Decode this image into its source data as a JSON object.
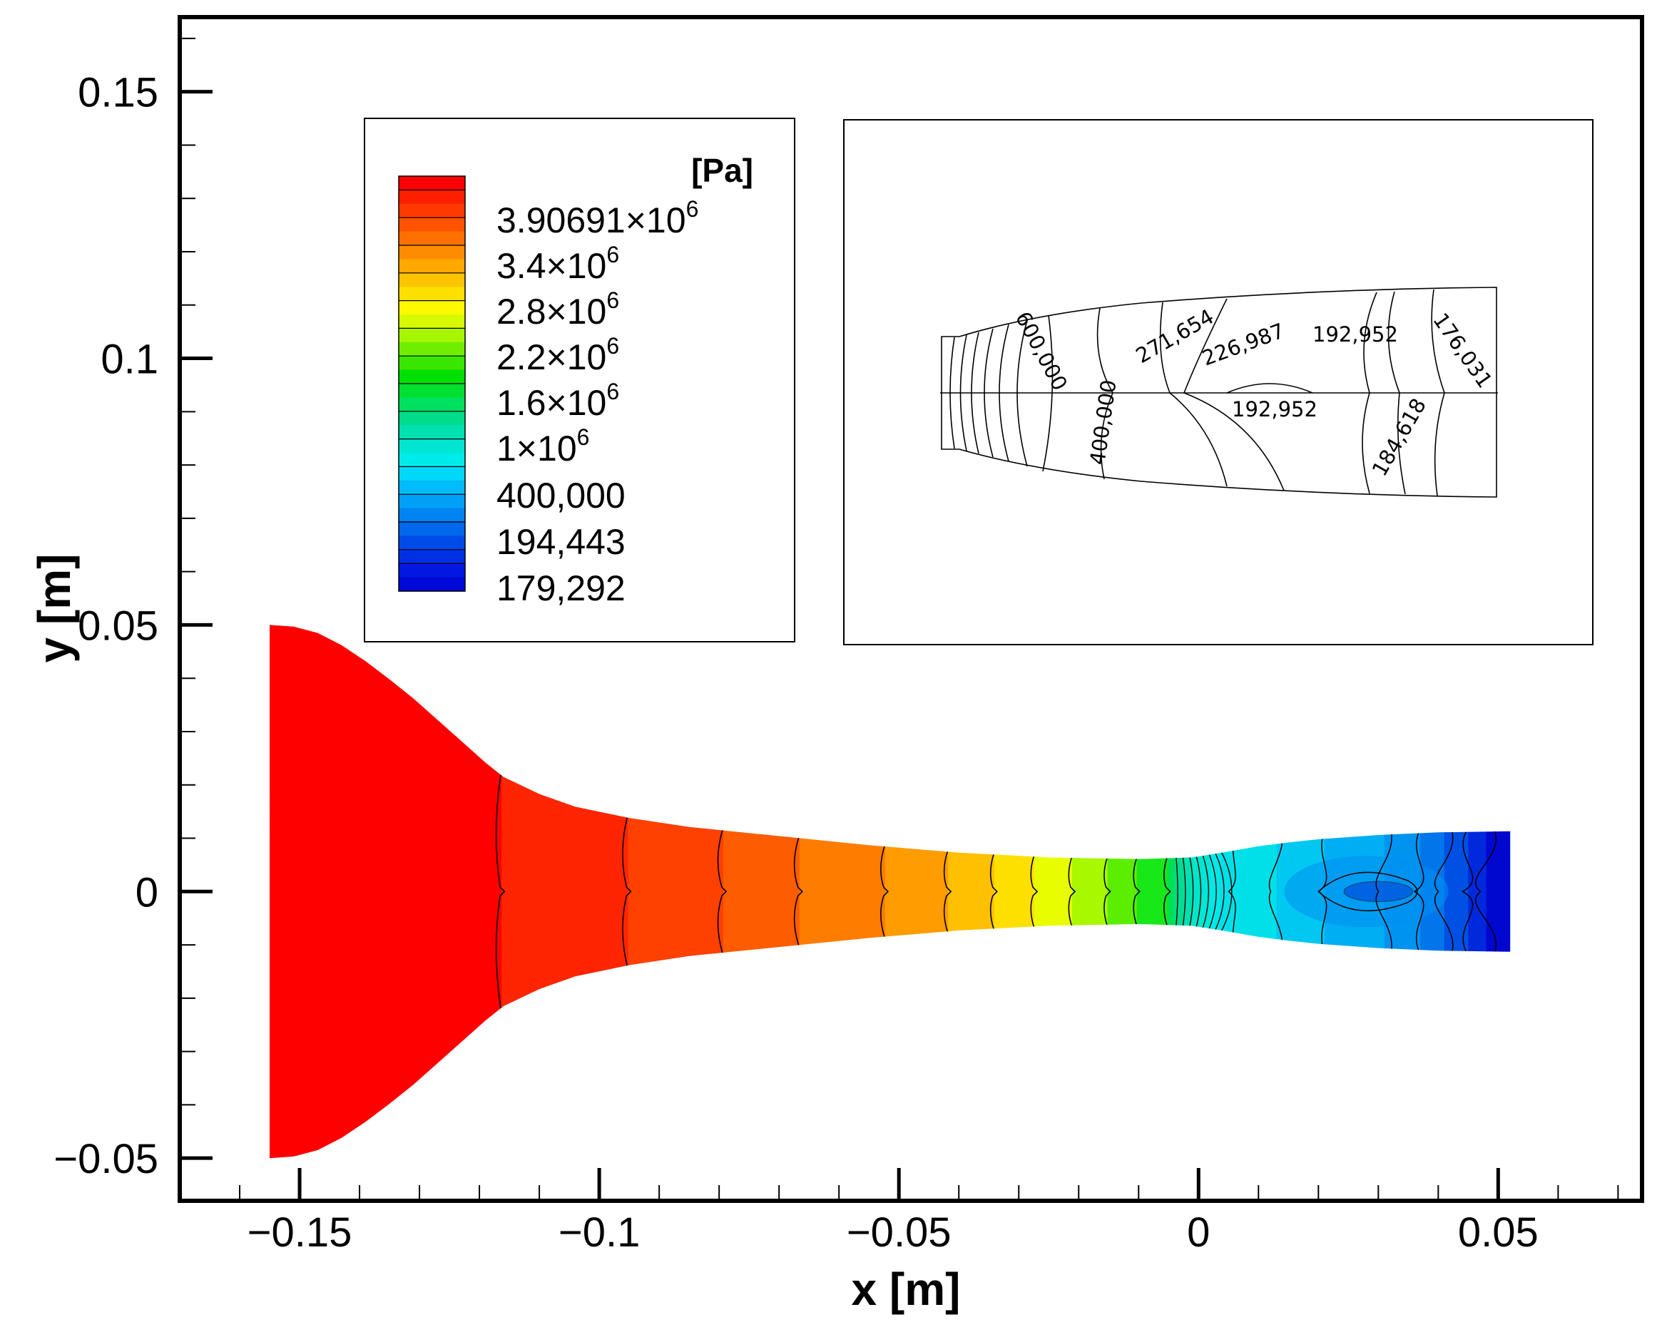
{
  "chart_data": {
    "type": "contour",
    "title": "",
    "xlabel": "x [m]",
    "ylabel": "y [m]",
    "xlim": [
      -0.17,
      0.074
    ],
    "ylim": [
      -0.058,
      0.164
    ],
    "x_ticks": [
      {
        "value": -0.15,
        "label": "−0.15"
      },
      {
        "value": -0.1,
        "label": "−0.1"
      },
      {
        "value": -0.05,
        "label": "−0.05"
      },
      {
        "value": 0,
        "label": "0"
      },
      {
        "value": 0.05,
        "label": "0.05"
      }
    ],
    "y_ticks": [
      {
        "value": -0.05,
        "label": "−0.05"
      },
      {
        "value": 0,
        "label": "0"
      },
      {
        "value": 0.05,
        "label": "0.05"
      },
      {
        "value": 0.1,
        "label": "0.1"
      },
      {
        "value": 0.15,
        "label": "0.15"
      }
    ],
    "nozzle_wall_upper": [
      [
        -0.155,
        0.05
      ],
      [
        -0.151,
        0.0497
      ],
      [
        -0.147,
        0.0485
      ],
      [
        -0.143,
        0.0462
      ],
      [
        -0.139,
        0.0432
      ],
      [
        -0.135,
        0.0398
      ],
      [
        -0.131,
        0.0362
      ],
      [
        -0.127,
        0.0322
      ],
      [
        -0.123,
        0.0282
      ],
      [
        -0.119,
        0.0242
      ],
      [
        -0.116,
        0.0215
      ],
      [
        -0.11,
        0.0183
      ],
      [
        -0.104,
        0.0159
      ],
      [
        -0.095,
        0.0138
      ],
      [
        -0.085,
        0.0121
      ],
      [
        -0.07,
        0.0104
      ],
      [
        -0.055,
        0.0087
      ],
      [
        -0.04,
        0.0073
      ],
      [
        -0.025,
        0.0064
      ],
      [
        -0.01,
        0.0061
      ],
      [
        -0.001,
        0.0064
      ],
      [
        0.005,
        0.0075
      ],
      [
        0.01,
        0.0085
      ],
      [
        0.015,
        0.0092
      ],
      [
        0.02,
        0.0098
      ],
      [
        0.03,
        0.0106
      ],
      [
        0.04,
        0.0111
      ],
      [
        0.052,
        0.0113
      ]
    ],
    "contour_levels_x": [
      -0.1163,
      -0.0952,
      -0.0793,
      -0.0666,
      -0.0523,
      -0.0418,
      -0.0341,
      -0.0274,
      -0.0211,
      -0.0152,
      -0.0103,
      -0.0052
    ],
    "band_colors": [
      "#fe0000",
      "#fe2500",
      "#fe4000",
      "#fe5c00",
      "#fe7c00",
      "#fe9c00",
      "#fec000",
      "#fee000",
      "#e8fe00",
      "#a8f800",
      "#5cee00",
      "#18e818",
      "#00e050",
      "#00dc90",
      "#00e6c8",
      "#00e8e8"
    ],
    "legend": {
      "unit": "[Pa]",
      "labels": [
        "3.90691×10",
        "3.4×10",
        "2.8×10",
        "2.2×10",
        "1.6×10",
        "1×10",
        "400,000",
        "194,443",
        "179,292"
      ],
      "exponents": [
        "6",
        "6",
        "6",
        "6",
        "6",
        "6",
        "",
        "",
        ""
      ],
      "colorbar_colors": [
        "#fe0000",
        "#fe1e00",
        "#fe3a00",
        "#fe5400",
        "#fe7000",
        "#fe8c00",
        "#fea800",
        "#fec400",
        "#fee000",
        "#fef800",
        "#d8fa00",
        "#a6f600",
        "#70ee00",
        "#38e600",
        "#00e000",
        "#00e030",
        "#00e060",
        "#00dc88",
        "#00e0b0",
        "#00e6d2",
        "#00eaea",
        "#00d8fa",
        "#00bcfa",
        "#00a0f6",
        "#0084f0",
        "#0068ec",
        "#004cea",
        "#0030e6",
        "#0018e0",
        "#0008d8"
      ],
      "outlet_colors": [
        "#00e0e8",
        "#00c8f0",
        "#00aef4",
        "#0094f0",
        "#0076ea",
        "#0050e4",
        "#0028dc",
        "#0008d0"
      ]
    },
    "inset": {
      "description": "contour-line detail of diverging section",
      "labels": [
        "600,000",
        "271,654",
        "226,987",
        "192,952",
        "176,031",
        "400,000",
        "192,952",
        "184,618"
      ]
    }
  }
}
